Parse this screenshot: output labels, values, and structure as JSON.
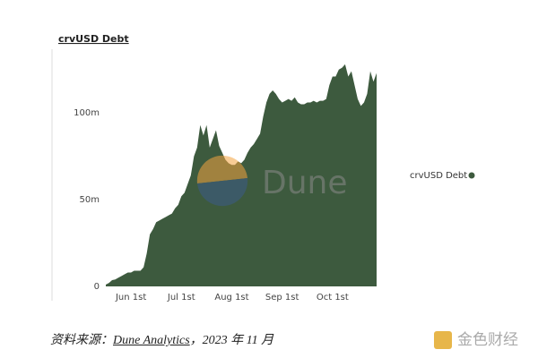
{
  "chart_data": {
    "type": "area",
    "title": "crvUSD Debt",
    "categories": [
      null,
      null,
      null,
      null,
      null,
      null,
      null,
      null,
      "Jun 1st",
      null,
      null,
      null,
      null,
      null,
      null,
      null,
      null,
      null,
      null,
      null,
      null,
      null,
      null,
      null,
      "Jul 1st",
      null,
      null,
      null,
      null,
      null,
      null,
      null,
      null,
      null,
      null,
      null,
      null,
      null,
      null,
      null,
      "Aug 1st",
      null,
      null,
      null,
      null,
      null,
      null,
      null,
      null,
      null,
      null,
      null,
      null,
      null,
      null,
      null,
      "Sep 1st",
      null,
      null,
      null,
      null,
      null,
      null,
      null,
      null,
      null,
      null,
      null,
      null,
      null,
      null,
      null,
      "Oct 1st",
      null,
      null,
      null,
      null,
      null,
      null,
      null,
      null,
      null,
      null,
      null,
      null,
      null,
      null
    ],
    "series": [
      {
        "name": "crvUSD Debt",
        "color": "#3d5a3e",
        "values": [
          1000000,
          2000000,
          3600000,
          4000000,
          5000000,
          6000000,
          7000000,
          8000000,
          8000000,
          9000000,
          9000000,
          9000000,
          11000000,
          19000000,
          30000000,
          33000000,
          37000000,
          38000000,
          39000000,
          40000000,
          41000000,
          42000000,
          45000000,
          47000000,
          52000000,
          54000000,
          59000000,
          64000000,
          75000000,
          80000000,
          93000000,
          87000000,
          93000000,
          80000000,
          85000000,
          90000000,
          81000000,
          77000000,
          73000000,
          71000000,
          70000000,
          70000000,
          72000000,
          71000000,
          73000000,
          77000000,
          80000000,
          82000000,
          85000000,
          88000000,
          98000000,
          106000000,
          111000000,
          113000000,
          111000000,
          108000000,
          106000000,
          107000000,
          108000000,
          107000000,
          109000000,
          106000000,
          105000000,
          105000000,
          106000000,
          106000000,
          107000000,
          106000000,
          107000000,
          107000000,
          108000000,
          116000000,
          121000000,
          121000000,
          125000000,
          126000000,
          128000000,
          121000000,
          124000000,
          116000000,
          108000000,
          104000000,
          106000000,
          111000000,
          124000000,
          118000000,
          123000000
        ]
      }
    ],
    "ylim": [
      0,
      130000000
    ],
    "yticks": [
      0,
      {
        "value": 50000000,
        "label": "50m"
      },
      {
        "value": 100000000,
        "label": "100m"
      }
    ],
    "legend": "right"
  },
  "watermarks": {
    "chart": "Dune",
    "corner": "金色财经"
  },
  "caption": {
    "prefix": "资料来源：",
    "link": "Dune Analytics",
    "suffix": "，2023 年 11 月"
  }
}
